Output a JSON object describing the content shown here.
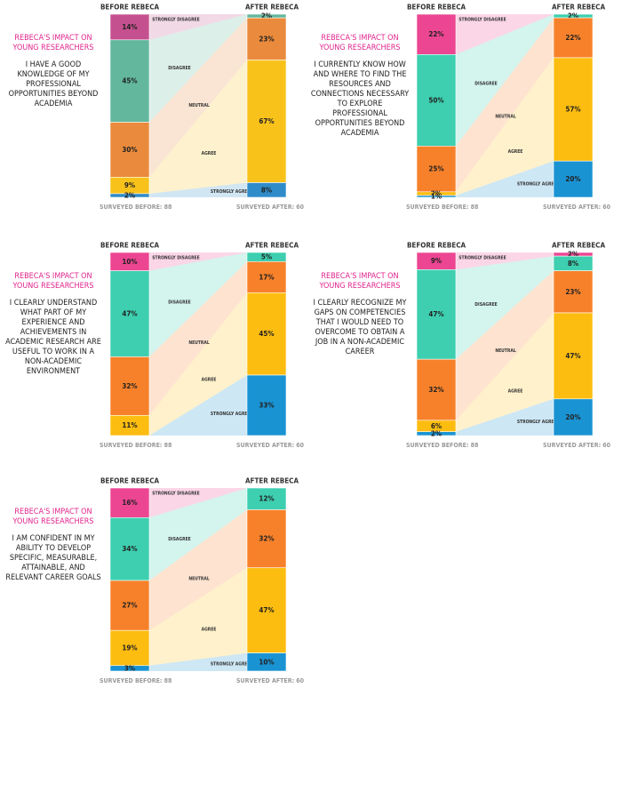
{
  "chart_data": [
    {
      "type": "flow",
      "title": "REBECA'S IMPACT ON YOUNG RESEARCHERS",
      "subtitle": "I HAVE A GOOD KNOWLEDGE OF MY PROFESSIONAL OPPORTUNITIES BEYOND ACADEMIA",
      "categories": [
        "BEFORE REBECA",
        "AFTER REBECA"
      ],
      "notes": [
        "SURVEYED BEFORE: 88",
        "SURVEYED AFTER: 60"
      ],
      "series": [
        {
          "name": "STRONGLY DISAGREE",
          "color": "#c5508f",
          "values": [
            14,
            0
          ],
          "value_labels": [
            "14%",
            null
          ]
        },
        {
          "name": "DISAGREE",
          "color": "#62b79d",
          "values": [
            45,
            2
          ],
          "value_labels": [
            "45%",
            "2%"
          ]
        },
        {
          "name": "NEUTRAL",
          "color": "#ea8a3c",
          "values": [
            30,
            23
          ],
          "value_labels": [
            "30%",
            "23%"
          ]
        },
        {
          "name": "AGREE",
          "color": "#f8c21b",
          "values": [
            9,
            67
          ],
          "value_labels": [
            "9%",
            "67%"
          ]
        },
        {
          "name": "STRONGLY AGREE",
          "color": "#2f8cc9",
          "values": [
            2,
            8
          ],
          "value_labels": [
            "2%",
            "8%"
          ]
        }
      ]
    },
    {
      "type": "flow",
      "title": "REBECA'S IMPACT ON YOUNG RESEARCHERS",
      "subtitle": "I CURRENTLY KNOW HOW AND WHERE TO FIND THE RESOURCES AND CONNECTIONS NECESSARY TO EXPLORE PROFESSIONAL OPPORTUNITIES BEYOND ACADEMIA",
      "categories": [
        "BEFORE REBECA",
        "AFTER REBECA"
      ],
      "notes": [
        "SURVEYED BEFORE: 88",
        "SURVEYED AFTER: 60"
      ],
      "series": [
        {
          "name": "STRONGLY DISAGREE",
          "color": "#ec4592",
          "values": [
            22,
            0
          ],
          "value_labels": [
            "22%",
            null
          ]
        },
        {
          "name": "DISAGREE",
          "color": "#3dcfb0",
          "values": [
            50,
            2
          ],
          "value_labels": [
            "50%",
            "2%"
          ]
        },
        {
          "name": "NEUTRAL",
          "color": "#f7812a",
          "values": [
            25,
            22
          ],
          "value_labels": [
            "25%",
            "22%"
          ]
        },
        {
          "name": "AGREE",
          "color": "#fdbd10",
          "values": [
            2,
            57
          ],
          "value_labels": [
            "2%",
            "57%"
          ]
        },
        {
          "name": "STRONGLY AGREE",
          "color": "#1a93d3",
          "values": [
            1,
            20
          ],
          "value_labels": [
            "1%",
            "20%"
          ]
        }
      ]
    },
    {
      "type": "flow",
      "title": "REBECA'S IMPACT ON YOUNG RESEARCHERS",
      "subtitle": "I CLEARLY UNDERSTAND WHAT PART OF MY EXPERIENCE AND ACHIEVEMENTS IN ACADEMIC RESEARCH ARE USEFUL TO WORK IN A NON-ACADEMIC ENVIRONMENT",
      "categories": [
        "BEFORE REBECA",
        "AFTER REBECA"
      ],
      "notes": [
        "SURVEYED BEFORE: 88",
        "SURVEYED AFTER: 60"
      ],
      "series": [
        {
          "name": "STRONGLY DISAGREE",
          "color": "#ec4592",
          "values": [
            10,
            0
          ],
          "value_labels": [
            "10%",
            null
          ]
        },
        {
          "name": "DISAGREE",
          "color": "#3dcfb0",
          "values": [
            47,
            5
          ],
          "value_labels": [
            "47%",
            "5%"
          ]
        },
        {
          "name": "NEUTRAL",
          "color": "#f7812a",
          "values": [
            32,
            17
          ],
          "value_labels": [
            "32%",
            "17%"
          ]
        },
        {
          "name": "AGREE",
          "color": "#fdbd10",
          "values": [
            11,
            45
          ],
          "value_labels": [
            "11%",
            "45%"
          ]
        },
        {
          "name": "STRONGLY AGREE",
          "color": "#1a93d3",
          "values": [
            0,
            33
          ],
          "value_labels": [
            null,
            "33%"
          ]
        }
      ]
    },
    {
      "type": "flow",
      "title": "REBECA'S IMPACT ON YOUNG RESEARCHERS",
      "subtitle": "I CLEARLY RECOGNIZE MY GAPS ON COMPETENCIES THAT I WOULD NEED TO OVERCOME TO OBTAIN A JOB IN A NON-ACADEMIC CAREER",
      "categories": [
        "BEFORE REBECA",
        "AFTER REBECA"
      ],
      "notes": [
        "SURVEYED BEFORE: 88",
        "SURVEYED AFTER: 60"
      ],
      "series": [
        {
          "name": "STRONGLY DISAGREE",
          "color": "#ec4592",
          "values": [
            9,
            2
          ],
          "value_labels": [
            "9%",
            "2%"
          ]
        },
        {
          "name": "DISAGREE",
          "color": "#3dcfb0",
          "values": [
            47,
            8
          ],
          "value_labels": [
            "47%",
            "8%"
          ]
        },
        {
          "name": "NEUTRAL",
          "color": "#f7812a",
          "values": [
            32,
            23
          ],
          "value_labels": [
            "32%",
            "23%"
          ]
        },
        {
          "name": "AGREE",
          "color": "#fdbd10",
          "values": [
            6,
            47
          ],
          "value_labels": [
            "6%",
            "47%"
          ]
        },
        {
          "name": "STRONGLY AGREE",
          "color": "#1a93d3",
          "values": [
            2,
            20
          ],
          "value_labels": [
            "2%",
            "20%"
          ]
        }
      ]
    },
    {
      "type": "flow",
      "title": "REBECA'S IMPACT ON YOUNG RESEARCHERS",
      "subtitle": "I AM CONFIDENT IN MY ABILITY TO DEVELOP SPECIFIC, MEASURABLE, ATTAINABLE, AND RELEVANT CAREER GOALS",
      "categories": [
        "BEFORE REBECA",
        "AFTER REBECA"
      ],
      "notes": [
        "SURVEYED BEFORE: 88",
        "SURVEYED AFTER: 60"
      ],
      "series": [
        {
          "name": "STRONGLY DISAGREE",
          "color": "#ec4592",
          "values": [
            16,
            0
          ],
          "value_labels": [
            "16%",
            null
          ]
        },
        {
          "name": "DISAGREE",
          "color": "#3dcfb0",
          "values": [
            34,
            12
          ],
          "value_labels": [
            "34%",
            "12%"
          ]
        },
        {
          "name": "NEUTRAL",
          "color": "#f7812a",
          "values": [
            27,
            32
          ],
          "value_labels": [
            "27%",
            "32%"
          ]
        },
        {
          "name": "AGREE",
          "color": "#fdbd10",
          "values": [
            19,
            47
          ],
          "value_labels": [
            "19%",
            "47%"
          ]
        },
        {
          "name": "STRONGLY AGREE",
          "color": "#1a93d3",
          "values": [
            3,
            10
          ],
          "value_labels": [
            "3%",
            "10%"
          ]
        }
      ]
    }
  ]
}
